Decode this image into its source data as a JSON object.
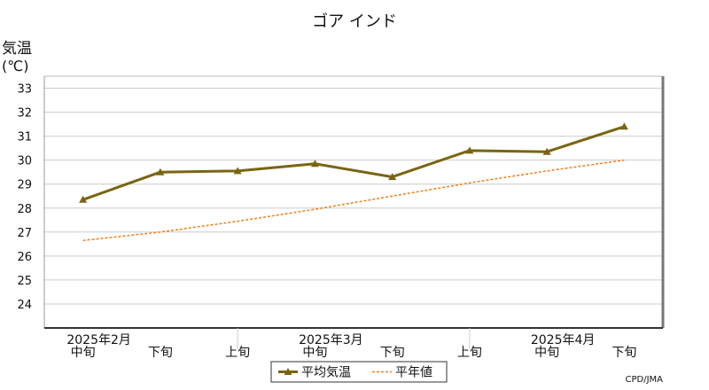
{
  "chart_data": {
    "type": "line",
    "title": "ゴア インド",
    "ylabel": "気温",
    "yunit": "(℃)",
    "ylim": [
      23,
      33.5
    ],
    "yticks": [
      24,
      25,
      26,
      27,
      28,
      29,
      30,
      31,
      32,
      33
    ],
    "categories": [
      "中旬",
      "下旬",
      "上旬",
      "中旬",
      "下旬",
      "上旬",
      "中旬",
      "下旬"
    ],
    "month_labels": [
      {
        "label": "2025年2月",
        "category_index": 0
      },
      {
        "label": "2025年3月",
        "category_index": 3
      },
      {
        "label": "2025年4月",
        "category_index": 6
      }
    ],
    "series": [
      {
        "name": "平均気温",
        "values": [
          28.35,
          29.5,
          29.55,
          29.85,
          29.3,
          30.4,
          30.35,
          31.4
        ],
        "color": "#7a6512",
        "style": "solid",
        "marker": "triangle"
      },
      {
        "name": "平年値",
        "values": [
          26.65,
          27.0,
          27.45,
          27.95,
          28.5,
          29.05,
          29.55,
          30.0
        ],
        "color": "#f07f18",
        "style": "dashed"
      }
    ],
    "grid": true,
    "legend": "bottom-center",
    "source": "CPD/JMA"
  }
}
